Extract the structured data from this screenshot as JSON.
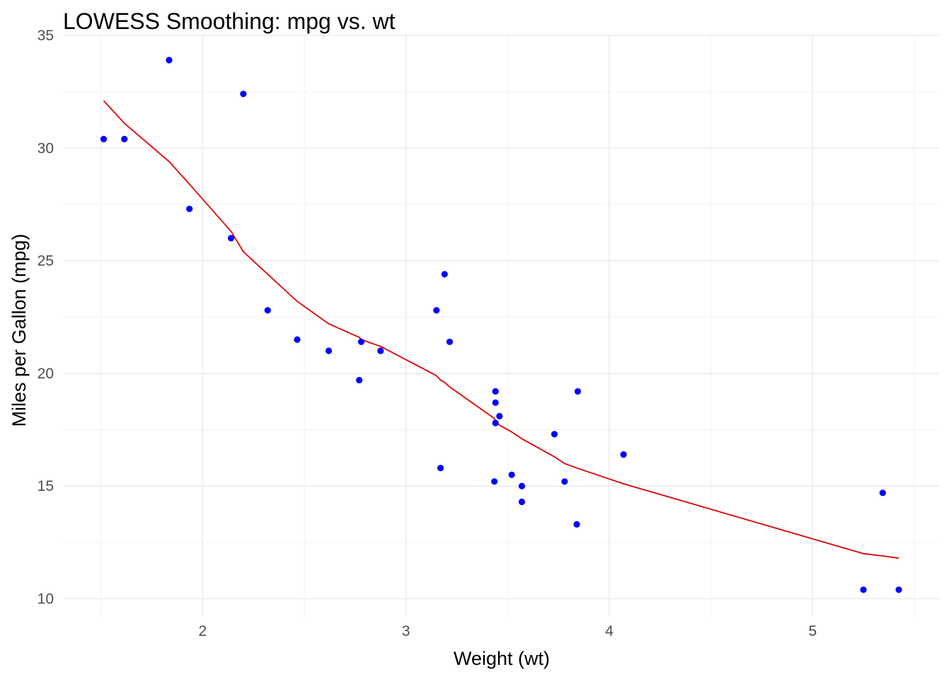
{
  "chart_data": {
    "type": "scatter",
    "title": "LOWESS Smoothing: mpg vs. wt",
    "xlabel": "Weight (wt)",
    "ylabel": "Miles per Gallon (mpg)",
    "xlim": [
      1.313,
      5.625
    ],
    "ylim": [
      9.2,
      35.0
    ],
    "xticks": [
      2,
      3,
      4,
      5
    ],
    "yticks": [
      10,
      15,
      20,
      25,
      30,
      35
    ],
    "grid": true,
    "legend": "none",
    "point_color": "#0000ff",
    "line_color": "#e00000",
    "series": [
      {
        "type": "scatter",
        "x": [
          2.62,
          2.875,
          2.32,
          3.215,
          3.44,
          3.46,
          3.57,
          3.19,
          3.15,
          3.44,
          3.44,
          4.07,
          3.73,
          3.78,
          5.25,
          5.424,
          5.345,
          2.2,
          1.615,
          1.835,
          2.465,
          3.52,
          3.435,
          3.84,
          3.845,
          1.935,
          2.14,
          1.513,
          3.17,
          2.77,
          3.57,
          2.78
        ],
        "y": [
          21.0,
          21.0,
          22.8,
          21.4,
          18.7,
          18.1,
          14.3,
          24.4,
          22.8,
          19.2,
          17.8,
          16.4,
          17.3,
          15.2,
          10.4,
          10.4,
          14.7,
          32.4,
          30.4,
          33.9,
          21.5,
          15.5,
          15.2,
          13.3,
          19.2,
          27.3,
          26.0,
          30.4,
          15.8,
          19.7,
          15.0,
          21.4
        ]
      },
      {
        "type": "line",
        "x": [
          1.513,
          1.615,
          1.835,
          1.935,
          2.14,
          2.2,
          2.32,
          2.465,
          2.62,
          2.77,
          2.78,
          2.875,
          3.15,
          3.17,
          3.19,
          3.215,
          3.435,
          3.44,
          3.46,
          3.52,
          3.57,
          3.73,
          3.78,
          3.84,
          4.07,
          5.25,
          5.345,
          5.424
        ],
        "y": [
          32.1,
          31.1,
          29.4,
          28.4,
          26.3,
          25.4,
          24.4,
          23.2,
          22.2,
          21.6,
          21.5,
          21.2,
          19.9,
          19.7,
          19.6,
          19.4,
          18.0,
          17.9,
          17.7,
          17.4,
          17.1,
          16.3,
          16.0,
          15.8,
          15.1,
          12.0,
          11.9,
          11.8
        ]
      }
    ]
  }
}
